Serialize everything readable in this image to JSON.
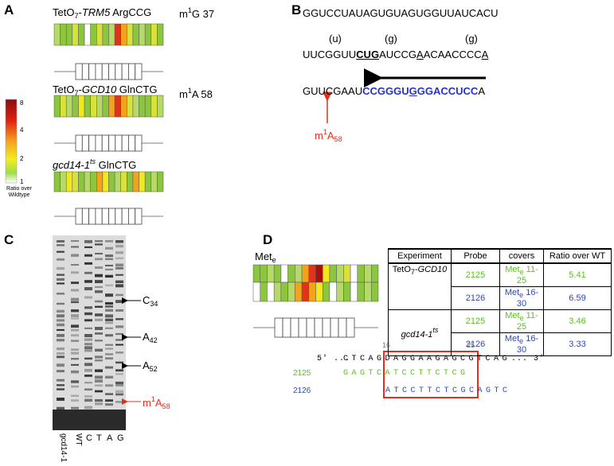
{
  "panel_a": {
    "label": "A",
    "constructs": [
      {
        "title": [
          "TetO",
          "7",
          "-",
          "TRM5",
          " ArgCCG"
        ],
        "modification": [
          "m",
          "1",
          "G 37"
        ]
      },
      {
        "title": [
          "TetO",
          "7",
          "-",
          "GCD10",
          " GlnCTG"
        ],
        "modification": [
          "m",
          "1",
          "A 58"
        ]
      },
      {
        "title": [
          "gcd14-1",
          "ts",
          " GlnCTG"
        ]
      }
    ],
    "scale": {
      "labels": [
        8,
        4,
        2,
        1
      ],
      "caption": "Ratio over Wildtype"
    }
  },
  "panel_b": {
    "label": "B",
    "line_1": "GGUCCUAUAGUGUAGUGGUUAUCACU",
    "variants": [
      "(u)",
      "(g)",
      "(g)"
    ],
    "line_2": [
      "UUCGGUU",
      "CUG",
      "AUCCG",
      "A",
      "ACAACCCC",
      "A"
    ],
    "line_3": [
      "GUUCGAAU",
      "CCGGGU",
      "G",
      "GGACCUCC",
      "A"
    ],
    "site": [
      "m",
      "1",
      "A",
      "58"
    ]
  },
  "panel_c": {
    "label": "C",
    "bands": [
      [
        "C",
        "34"
      ],
      [
        "A",
        "42"
      ],
      [
        "A",
        "52"
      ],
      [
        "m",
        "1",
        "A",
        "58"
      ]
    ],
    "lanes": [
      "gcd14-1",
      "WT",
      "C",
      "T",
      "A",
      "G"
    ]
  },
  "panel_d": {
    "label": "D",
    "trna": [
      "Met",
      "e"
    ],
    "table": {
      "header": [
        "Experiment",
        "Probe",
        "covers",
        "Ratio over WT"
      ],
      "rows": [
        {
          "experiment": [
            "TetO",
            "7",
            "-",
            "GCD10"
          ],
          "probe": 2125,
          "covers": [
            "Met",
            "e",
            " 11-25"
          ],
          "ratio": 5.41
        },
        {
          "probe": 2126,
          "covers": [
            "Met",
            "e",
            " 16-30"
          ],
          "ratio": 6.59
        },
        {
          "experiment": [
            "gcd14-1",
            "ts"
          ],
          "probe": 2125,
          "covers": [
            "Met",
            "e",
            " 11-25"
          ],
          "ratio": 3.46
        },
        {
          "probe": 2126,
          "covers": [
            "Met",
            "e",
            " 16-30"
          ],
          "ratio": 3.33
        }
      ]
    },
    "alignment": {
      "positions": [
        16,
        25
      ],
      "target": {
        "prefix": "5' ...",
        "sequence": "CTCAGDAGGAAGAGCGTCAG",
        "suffix": "... 3'"
      },
      "probes": [
        {
          "name": 2125,
          "sequence": "GAGTCATCCTTCTCG"
        },
        {
          "name": 2126,
          "sequence": "ATCCTTCTCGCAGTC"
        }
      ]
    }
  }
}
